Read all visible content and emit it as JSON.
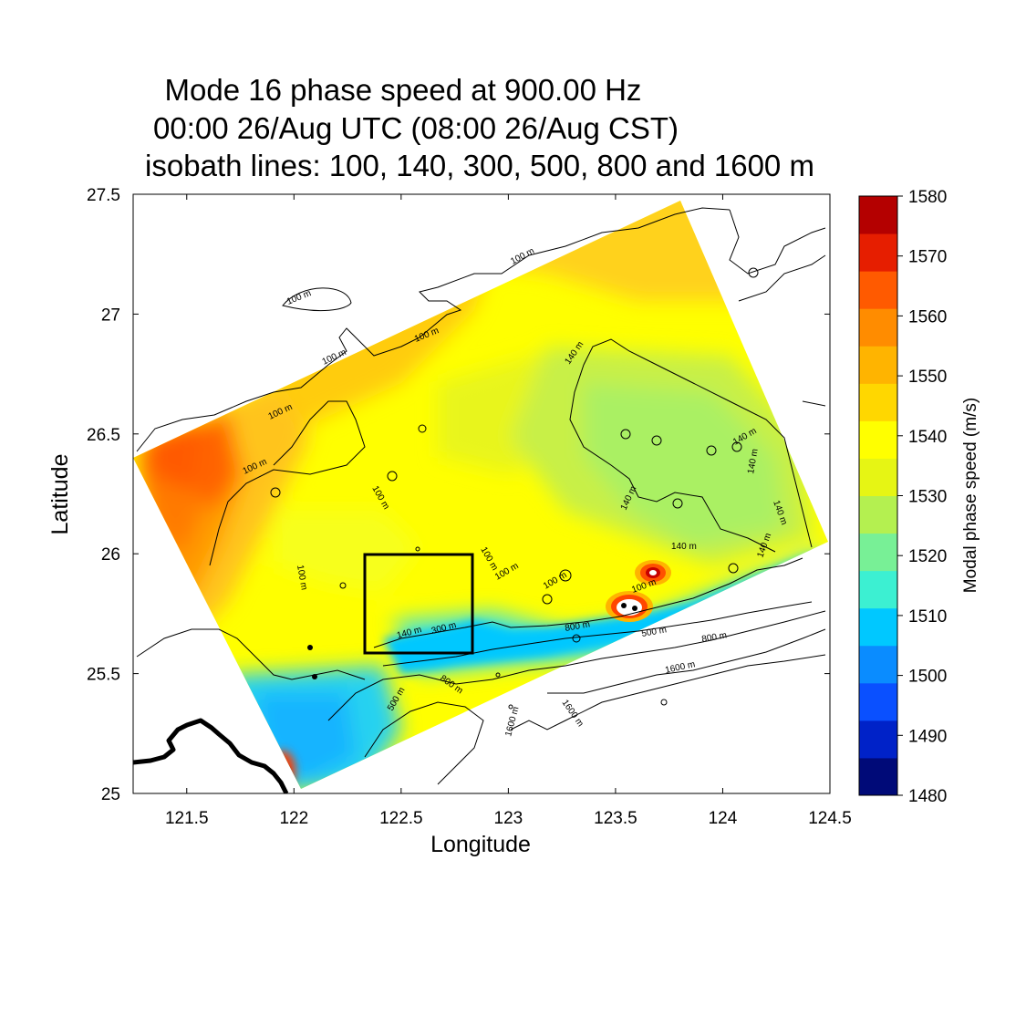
{
  "title": {
    "line1": "Mode 16 phase speed at 900.00 Hz",
    "line2": "00:00 26/Aug UTC (08:00 26/Aug CST)",
    "line3": "isobath lines: 100, 140, 300, 500, 800 and 1600 m"
  },
  "axes": {
    "xlabel": "Longitude",
    "ylabel": "Latitude",
    "xlim": [
      121.25,
      124.5
    ],
    "ylim": [
      25.0,
      27.5
    ],
    "xticks": [
      {
        "value": 121.5,
        "label": "121.5"
      },
      {
        "value": 122,
        "label": "122"
      },
      {
        "value": 122.5,
        "label": "122.5"
      },
      {
        "value": 123,
        "label": "123"
      },
      {
        "value": 123.5,
        "label": "123.5"
      },
      {
        "value": 124,
        "label": "124"
      },
      {
        "value": 124.5,
        "label": "124.5"
      }
    ],
    "yticks": [
      {
        "value": 25,
        "label": "25"
      },
      {
        "value": 25.5,
        "label": "25.5"
      },
      {
        "value": 26,
        "label": "26"
      },
      {
        "value": 26.5,
        "label": "26.5"
      },
      {
        "value": 27,
        "label": "27"
      },
      {
        "value": 27.5,
        "label": "27.5"
      }
    ]
  },
  "colorbar": {
    "title": "Modal phase speed (m/s)",
    "min": 1480,
    "max": 1580,
    "labels": [
      "1580",
      "1570",
      "1560",
      "1550",
      "1540",
      "1530",
      "1520",
      "1510",
      "1500",
      "1490",
      "1480"
    ],
    "colors": [
      "#000a78",
      "#0022c8",
      "#0a50ff",
      "#0a8cff",
      "#00c8ff",
      "#3cf0d2",
      "#78f096",
      "#b4f050",
      "#e6f514",
      "#ffff00",
      "#ffd700",
      "#ffb400",
      "#ff8c00",
      "#ff5a00",
      "#e61e00",
      "#b40000"
    ]
  },
  "chart_data": {
    "type": "map-heatmap",
    "domain_corners_lonlat": [
      [
        121.25,
        26.4
      ],
      [
        123.8,
        27.47
      ],
      [
        124.5,
        26.05
      ],
      [
        122.05,
        25.02
      ]
    ],
    "analysis_box_lonlat": {
      "lon": [
        122.33,
        122.82
      ],
      "lat": [
        25.58,
        26.0
      ]
    },
    "isobaths_m": [
      100,
      140,
      300,
      500,
      800,
      1600
    ],
    "isobath_labels": [
      "100 m",
      "100 m",
      "100 m",
      "100 m",
      "100 m",
      "100 m",
      "100 m",
      "100 m",
      "100 m",
      "100 m",
      "100 m",
      "100 m",
      "140 m",
      "140 m",
      "140 m",
      "140 m",
      "140 m",
      "140 m",
      "140 m",
      "140 m",
      "300 m",
      "500 m",
      "500 m",
      "800 m",
      "800 m",
      "800 m",
      "1600 m",
      "1600 m",
      "1600 m"
    ]
  }
}
